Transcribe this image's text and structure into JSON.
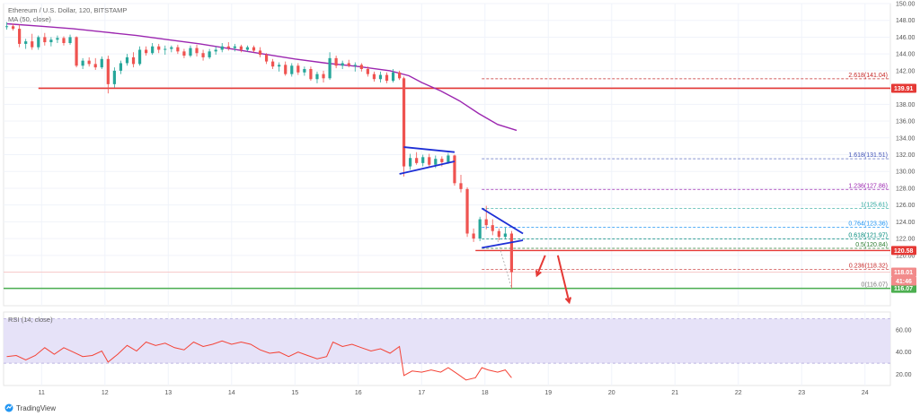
{
  "header": {
    "title": "Ethereum / U.S. Dollar, 120, BITSTAMP",
    "ma_label": "MA (50, close)",
    "rsi_label": "RSI (14, close)"
  },
  "brand": {
    "name": "TradingView",
    "icon": "tradingview-logo-icon"
  },
  "colors": {
    "up": "#26a69a",
    "down": "#ef5350",
    "ma": "#9c27b0",
    "support": "#e53935",
    "triangle": "#1e2fd6",
    "green_line": "#4caf50",
    "rsi": "#f44336",
    "rsi_band": "#e6e2f8",
    "tag_red": "#e53935",
    "tag_green": "#4caf50",
    "tag_pink": "#f28b8b"
  },
  "chart_data": {
    "type": "candlestick",
    "x_ticks": [
      "11",
      "12",
      "13",
      "14",
      "15",
      "16",
      "17",
      "18",
      "19",
      "20",
      "21",
      "22",
      "23",
      "24"
    ],
    "y_ticks": [
      "150.00",
      "148.00",
      "146.00",
      "144.00",
      "142.00",
      "140.00",
      "138.00",
      "136.00",
      "134.00",
      "132.00",
      "130.00",
      "128.00",
      "126.00",
      "124.00",
      "122.00",
      "120.00",
      "118.00",
      "116.00"
    ],
    "ylim": [
      114,
      150
    ],
    "xlim": [
      10.4,
      24.4
    ],
    "grid": true,
    "candles": [
      {
        "x": 10.45,
        "o": 147.2,
        "h": 147.8,
        "l": 146.9,
        "c": 147.3
      },
      {
        "x": 10.55,
        "o": 147.3,
        "h": 147.6,
        "l": 146.8,
        "c": 147.0
      },
      {
        "x": 10.65,
        "o": 147.0,
        "h": 147.5,
        "l": 144.8,
        "c": 145.2
      },
      {
        "x": 10.75,
        "o": 145.2,
        "h": 145.8,
        "l": 144.6,
        "c": 145.5
      },
      {
        "x": 10.85,
        "o": 145.5,
        "h": 146.4,
        "l": 144.5,
        "c": 144.8
      },
      {
        "x": 10.95,
        "o": 144.8,
        "h": 146.2,
        "l": 144.5,
        "c": 146.0
      },
      {
        "x": 11.05,
        "o": 146.0,
        "h": 146.5,
        "l": 145.0,
        "c": 145.4
      },
      {
        "x": 11.15,
        "o": 145.4,
        "h": 146.0,
        "l": 144.9,
        "c": 145.7
      },
      {
        "x": 11.25,
        "o": 145.7,
        "h": 146.2,
        "l": 145.3,
        "c": 145.9
      },
      {
        "x": 11.35,
        "o": 145.9,
        "h": 146.1,
        "l": 145.0,
        "c": 145.3
      },
      {
        "x": 11.45,
        "o": 145.3,
        "h": 146.3,
        "l": 145.1,
        "c": 146.0
      },
      {
        "x": 11.55,
        "o": 146.0,
        "h": 146.1,
        "l": 142.4,
        "c": 142.6
      },
      {
        "x": 11.65,
        "o": 142.6,
        "h": 143.5,
        "l": 142.2,
        "c": 143.2
      },
      {
        "x": 11.75,
        "o": 143.2,
        "h": 143.6,
        "l": 142.5,
        "c": 142.8
      },
      {
        "x": 11.85,
        "o": 142.8,
        "h": 143.5,
        "l": 142.1,
        "c": 142.4
      },
      {
        "x": 11.95,
        "o": 142.4,
        "h": 143.7,
        "l": 142.2,
        "c": 143.4
      },
      {
        "x": 12.05,
        "o": 143.4,
        "h": 143.8,
        "l": 139.3,
        "c": 140.4
      },
      {
        "x": 12.15,
        "o": 140.4,
        "h": 142.4,
        "l": 140.0,
        "c": 142.0
      },
      {
        "x": 12.25,
        "o": 142.0,
        "h": 143.2,
        "l": 141.6,
        "c": 142.9
      },
      {
        "x": 12.35,
        "o": 142.9,
        "h": 144.0,
        "l": 142.6,
        "c": 143.6
      },
      {
        "x": 12.45,
        "o": 143.6,
        "h": 144.2,
        "l": 142.4,
        "c": 142.8
      },
      {
        "x": 12.55,
        "o": 142.8,
        "h": 144.9,
        "l": 142.6,
        "c": 144.5
      },
      {
        "x": 12.65,
        "o": 144.5,
        "h": 144.9,
        "l": 143.8,
        "c": 144.1
      },
      {
        "x": 12.75,
        "o": 144.1,
        "h": 145.3,
        "l": 143.9,
        "c": 144.9
      },
      {
        "x": 12.85,
        "o": 144.9,
        "h": 145.2,
        "l": 144.1,
        "c": 144.5
      },
      {
        "x": 12.95,
        "o": 144.5,
        "h": 145.0,
        "l": 143.9,
        "c": 144.6
      },
      {
        "x": 13.05,
        "o": 144.6,
        "h": 145.0,
        "l": 144.2,
        "c": 144.8
      },
      {
        "x": 13.15,
        "o": 144.8,
        "h": 145.1,
        "l": 144.0,
        "c": 144.3
      },
      {
        "x": 13.25,
        "o": 144.3,
        "h": 144.6,
        "l": 143.5,
        "c": 143.8
      },
      {
        "x": 13.35,
        "o": 143.8,
        "h": 145.0,
        "l": 143.6,
        "c": 144.7
      },
      {
        "x": 13.45,
        "o": 144.7,
        "h": 145.1,
        "l": 143.7,
        "c": 144.1
      },
      {
        "x": 13.55,
        "o": 144.1,
        "h": 144.5,
        "l": 143.2,
        "c": 143.6
      },
      {
        "x": 13.65,
        "o": 143.6,
        "h": 144.6,
        "l": 143.4,
        "c": 144.3
      },
      {
        "x": 13.75,
        "o": 144.3,
        "h": 144.9,
        "l": 143.9,
        "c": 144.5
      },
      {
        "x": 13.85,
        "o": 144.5,
        "h": 145.3,
        "l": 144.2,
        "c": 144.9
      },
      {
        "x": 13.95,
        "o": 144.9,
        "h": 145.4,
        "l": 144.4,
        "c": 144.7
      },
      {
        "x": 14.05,
        "o": 144.7,
        "h": 145.2,
        "l": 144.3,
        "c": 144.9
      },
      {
        "x": 14.15,
        "o": 144.9,
        "h": 145.1,
        "l": 144.2,
        "c": 144.5
      },
      {
        "x": 14.25,
        "o": 144.5,
        "h": 145.0,
        "l": 144.3,
        "c": 144.8
      },
      {
        "x": 14.35,
        "o": 144.8,
        "h": 145.0,
        "l": 144.2,
        "c": 144.4
      },
      {
        "x": 14.45,
        "o": 144.4,
        "h": 144.8,
        "l": 143.6,
        "c": 143.9
      },
      {
        "x": 14.55,
        "o": 143.9,
        "h": 144.1,
        "l": 142.8,
        "c": 143.1
      },
      {
        "x": 14.65,
        "o": 143.1,
        "h": 143.4,
        "l": 142.2,
        "c": 142.5
      },
      {
        "x": 14.75,
        "o": 142.5,
        "h": 143.0,
        "l": 141.9,
        "c": 142.7
      },
      {
        "x": 14.85,
        "o": 142.7,
        "h": 143.1,
        "l": 141.4,
        "c": 141.6
      },
      {
        "x": 14.95,
        "o": 141.6,
        "h": 142.9,
        "l": 141.3,
        "c": 142.6
      },
      {
        "x": 15.05,
        "o": 142.6,
        "h": 142.9,
        "l": 141.5,
        "c": 141.8
      },
      {
        "x": 15.15,
        "o": 141.8,
        "h": 142.5,
        "l": 141.4,
        "c": 142.2
      },
      {
        "x": 15.25,
        "o": 142.2,
        "h": 142.5,
        "l": 140.8,
        "c": 141.0
      },
      {
        "x": 15.35,
        "o": 141.0,
        "h": 141.9,
        "l": 140.5,
        "c": 141.6
      },
      {
        "x": 15.45,
        "o": 141.6,
        "h": 142.0,
        "l": 140.6,
        "c": 141.1
      },
      {
        "x": 15.55,
        "o": 141.1,
        "h": 144.2,
        "l": 140.9,
        "c": 143.5
      },
      {
        "x": 15.65,
        "o": 143.5,
        "h": 143.8,
        "l": 142.3,
        "c": 142.6
      },
      {
        "x": 15.75,
        "o": 142.6,
        "h": 143.2,
        "l": 142.2,
        "c": 142.9
      },
      {
        "x": 15.85,
        "o": 142.9,
        "h": 143.3,
        "l": 142.4,
        "c": 142.6
      },
      {
        "x": 15.95,
        "o": 142.6,
        "h": 143.0,
        "l": 141.9,
        "c": 142.7
      },
      {
        "x": 16.05,
        "o": 142.7,
        "h": 142.9,
        "l": 141.9,
        "c": 142.2
      },
      {
        "x": 16.15,
        "o": 142.2,
        "h": 142.5,
        "l": 141.3,
        "c": 141.6
      },
      {
        "x": 16.25,
        "o": 141.6,
        "h": 141.9,
        "l": 140.7,
        "c": 141.0
      },
      {
        "x": 16.35,
        "o": 141.0,
        "h": 141.9,
        "l": 140.6,
        "c": 141.5
      },
      {
        "x": 16.45,
        "o": 141.5,
        "h": 141.8,
        "l": 140.5,
        "c": 140.8
      },
      {
        "x": 16.55,
        "o": 140.8,
        "h": 142.2,
        "l": 140.6,
        "c": 141.8
      },
      {
        "x": 16.65,
        "o": 141.8,
        "h": 142.0,
        "l": 140.9,
        "c": 141.1
      },
      {
        "x": 16.72,
        "o": 141.1,
        "h": 141.3,
        "l": 129.4,
        "c": 130.6
      },
      {
        "x": 16.82,
        "o": 130.6,
        "h": 132.1,
        "l": 130.2,
        "c": 131.6
      },
      {
        "x": 16.92,
        "o": 131.6,
        "h": 132.3,
        "l": 130.8,
        "c": 131.0
      },
      {
        "x": 17.02,
        "o": 131.0,
        "h": 132.0,
        "l": 130.6,
        "c": 131.7
      },
      {
        "x": 17.12,
        "o": 131.7,
        "h": 132.1,
        "l": 130.5,
        "c": 130.8
      },
      {
        "x": 17.22,
        "o": 130.8,
        "h": 131.9,
        "l": 130.4,
        "c": 131.5
      },
      {
        "x": 17.32,
        "o": 131.5,
        "h": 131.8,
        "l": 130.6,
        "c": 131.1
      },
      {
        "x": 17.42,
        "o": 131.1,
        "h": 132.2,
        "l": 130.9,
        "c": 131.9
      },
      {
        "x": 17.52,
        "o": 131.9,
        "h": 132.0,
        "l": 128.3,
        "c": 128.6
      },
      {
        "x": 17.62,
        "o": 128.6,
        "h": 129.6,
        "l": 127.5,
        "c": 127.9
      },
      {
        "x": 17.72,
        "o": 127.9,
        "h": 128.1,
        "l": 122.2,
        "c": 122.6
      },
      {
        "x": 17.82,
        "o": 122.6,
        "h": 123.2,
        "l": 121.6,
        "c": 122.0
      },
      {
        "x": 17.92,
        "o": 122.0,
        "h": 124.6,
        "l": 121.7,
        "c": 124.3
      },
      {
        "x": 18.02,
        "o": 124.3,
        "h": 125.9,
        "l": 123.1,
        "c": 123.6
      },
      {
        "x": 18.12,
        "o": 123.6,
        "h": 124.3,
        "l": 122.4,
        "c": 122.9
      },
      {
        "x": 18.22,
        "o": 122.9,
        "h": 123.2,
        "l": 121.8,
        "c": 122.2
      },
      {
        "x": 18.32,
        "o": 122.2,
        "h": 123.3,
        "l": 121.9,
        "c": 122.6
      },
      {
        "x": 18.42,
        "o": 122.6,
        "h": 122.9,
        "l": 116.1,
        "c": 118.0
      }
    ],
    "ma": [
      {
        "x": 10.45,
        "y": 147.6
      },
      {
        "x": 11.0,
        "y": 147.3
      },
      {
        "x": 11.5,
        "y": 147.0
      },
      {
        "x": 12.0,
        "y": 146.6
      },
      {
        "x": 12.5,
        "y": 146.2
      },
      {
        "x": 13.0,
        "y": 145.7
      },
      {
        "x": 13.5,
        "y": 145.2
      },
      {
        "x": 14.0,
        "y": 144.6
      },
      {
        "x": 14.5,
        "y": 144.0
      },
      {
        "x": 15.0,
        "y": 143.4
      },
      {
        "x": 15.5,
        "y": 142.9
      },
      {
        "x": 16.0,
        "y": 142.5
      },
      {
        "x": 16.5,
        "y": 142.0
      },
      {
        "x": 16.8,
        "y": 141.4
      },
      {
        "x": 17.0,
        "y": 140.6
      },
      {
        "x": 17.3,
        "y": 139.6
      },
      {
        "x": 17.6,
        "y": 138.4
      },
      {
        "x": 17.9,
        "y": 136.9
      },
      {
        "x": 18.2,
        "y": 135.6
      },
      {
        "x": 18.5,
        "y": 134.9
      }
    ],
    "horizontal_lines": [
      {
        "name": "resistance-139-91",
        "y": 139.91,
        "x1": 10.95,
        "x2": 24.4,
        "color": "#e53935",
        "width": 1.6,
        "tag": "139.91",
        "tag_color": "#e53935"
      },
      {
        "name": "resistance-120-58",
        "y": 120.58,
        "x1": 17.85,
        "x2": 24.4,
        "color": "#e53935",
        "width": 1.4,
        "tag": "120.58",
        "tag_color": "#e53935"
      },
      {
        "name": "support-116-07",
        "y": 116.07,
        "x1": 10.4,
        "x2": 24.4,
        "color": "#4caf50",
        "width": 1.4,
        "tag": "116.07",
        "tag_color": "#4caf50"
      },
      {
        "name": "price-118-01",
        "y": 118.01,
        "x1": 10.4,
        "x2": 24.4,
        "color": "#f8c4c4",
        "width": 0.8,
        "tag": "118.01",
        "tag_color": "#f28b8b"
      }
    ],
    "current_price_timer": "41:46",
    "fib_levels": [
      {
        "ratio": "2.618",
        "value": "141.04",
        "y": 141.04,
        "color": "#c62828",
        "label": "2.618(141.04)"
      },
      {
        "ratio": "1.618",
        "value": "131.51",
        "y": 131.51,
        "color": "#3f51b5",
        "label": "1.618(131.51)"
      },
      {
        "ratio": "1.236",
        "value": "127.86",
        "y": 127.86,
        "color": "#9c27b0",
        "label": "1.236(127.86)"
      },
      {
        "ratio": "1",
        "value": "125.61",
        "y": 125.61,
        "color": "#26a69a",
        "label": "1(125.61)"
      },
      {
        "ratio": "0.764",
        "value": "123.36",
        "y": 123.36,
        "color": "#2196f3",
        "label": "0.764(123.36)"
      },
      {
        "ratio": "0.618",
        "value": "121.97",
        "y": 121.97,
        "color": "#00897b",
        "label": "0.618(121.97)"
      },
      {
        "ratio": "0.5",
        "value": "120.84",
        "y": 120.84,
        "color": "#2e7d32",
        "label": "0.5(120.84)"
      },
      {
        "ratio": "0.236",
        "value": "118.32",
        "y": 118.32,
        "color": "#c62828",
        "label": "0.236(118.32)"
      },
      {
        "ratio": "0",
        "value": "116.07",
        "y": 116.07,
        "color": "#777777",
        "label": "0(116.07)"
      }
    ],
    "triangles": [
      {
        "name": "triangle-1",
        "upper": [
          [
            16.72,
            132.9
          ],
          [
            17.52,
            132.3
          ]
        ],
        "lower": [
          [
            16.65,
            129.7
          ],
          [
            17.52,
            131.2
          ]
        ]
      },
      {
        "name": "triangle-2",
        "upper": [
          [
            17.95,
            125.6
          ],
          [
            18.6,
            122.6
          ]
        ],
        "lower": [
          [
            17.95,
            120.9
          ],
          [
            18.6,
            121.8
          ]
        ]
      }
    ],
    "arrows": [
      {
        "name": "arrow-short",
        "from": [
          18.95,
          120.0
        ],
        "to": [
          18.82,
          117.6
        ]
      },
      {
        "name": "arrow-long",
        "from": [
          19.15,
          120.0
        ],
        "to": [
          19.33,
          114.4
        ]
      }
    ],
    "rsi": {
      "ylim": [
        10,
        76
      ],
      "y_ticks": [
        "60.00",
        "40.00",
        "20.00"
      ],
      "band": [
        30,
        70
      ],
      "values": [
        {
          "x": 10.45,
          "y": 36
        },
        {
          "x": 10.6,
          "y": 37
        },
        {
          "x": 10.75,
          "y": 33
        },
        {
          "x": 10.9,
          "y": 37
        },
        {
          "x": 11.05,
          "y": 44
        },
        {
          "x": 11.2,
          "y": 38
        },
        {
          "x": 11.35,
          "y": 44
        },
        {
          "x": 11.5,
          "y": 40
        },
        {
          "x": 11.65,
          "y": 36
        },
        {
          "x": 11.8,
          "y": 37
        },
        {
          "x": 11.95,
          "y": 41
        },
        {
          "x": 12.05,
          "y": 31
        },
        {
          "x": 12.2,
          "y": 38
        },
        {
          "x": 12.35,
          "y": 46
        },
        {
          "x": 12.5,
          "y": 41
        },
        {
          "x": 12.65,
          "y": 49
        },
        {
          "x": 12.8,
          "y": 46
        },
        {
          "x": 12.95,
          "y": 48
        },
        {
          "x": 13.1,
          "y": 44
        },
        {
          "x": 13.25,
          "y": 42
        },
        {
          "x": 13.4,
          "y": 49
        },
        {
          "x": 13.55,
          "y": 45
        },
        {
          "x": 13.7,
          "y": 47
        },
        {
          "x": 13.85,
          "y": 50
        },
        {
          "x": 14.0,
          "y": 47
        },
        {
          "x": 14.15,
          "y": 49
        },
        {
          "x": 14.3,
          "y": 47
        },
        {
          "x": 14.45,
          "y": 42
        },
        {
          "x": 14.6,
          "y": 39
        },
        {
          "x": 14.75,
          "y": 40
        },
        {
          "x": 14.9,
          "y": 36
        },
        {
          "x": 15.05,
          "y": 40
        },
        {
          "x": 15.2,
          "y": 37
        },
        {
          "x": 15.35,
          "y": 34
        },
        {
          "x": 15.5,
          "y": 36
        },
        {
          "x": 15.6,
          "y": 49
        },
        {
          "x": 15.75,
          "y": 45
        },
        {
          "x": 15.9,
          "y": 47
        },
        {
          "x": 16.05,
          "y": 44
        },
        {
          "x": 16.2,
          "y": 41
        },
        {
          "x": 16.35,
          "y": 43
        },
        {
          "x": 16.5,
          "y": 39
        },
        {
          "x": 16.65,
          "y": 45
        },
        {
          "x": 16.72,
          "y": 19
        },
        {
          "x": 16.85,
          "y": 23
        },
        {
          "x": 17.0,
          "y": 22
        },
        {
          "x": 17.15,
          "y": 24
        },
        {
          "x": 17.3,
          "y": 22
        },
        {
          "x": 17.42,
          "y": 26
        },
        {
          "x": 17.55,
          "y": 21
        },
        {
          "x": 17.7,
          "y": 15
        },
        {
          "x": 17.85,
          "y": 17
        },
        {
          "x": 17.95,
          "y": 26
        },
        {
          "x": 18.05,
          "y": 24
        },
        {
          "x": 18.2,
          "y": 22
        },
        {
          "x": 18.32,
          "y": 24
        },
        {
          "x": 18.42,
          "y": 17
        }
      ]
    }
  }
}
